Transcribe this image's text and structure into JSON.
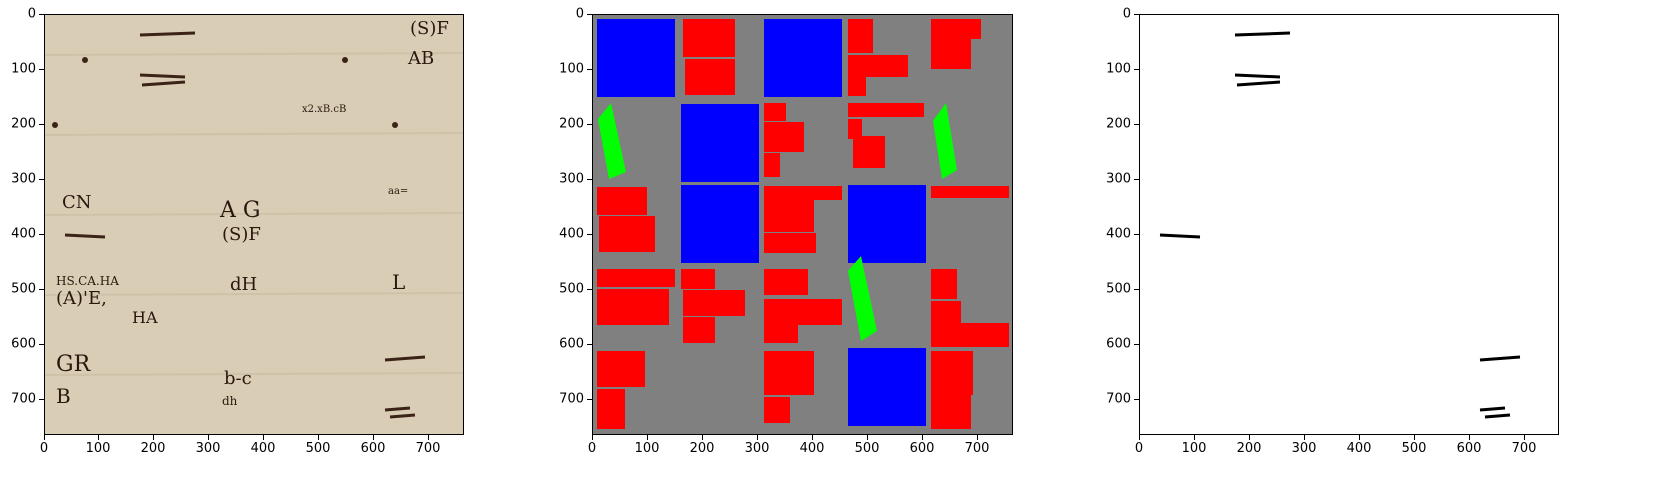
{
  "figure": {
    "panels": [
      {
        "id": "manuscript",
        "kind": "image"
      },
      {
        "id": "segmentation",
        "kind": "mask",
        "colors": {
          "background": "#808080",
          "red": "#ff0000",
          "blue": "#0000ff",
          "green": "#00ff00"
        }
      },
      {
        "id": "binarized",
        "kind": "image"
      }
    ],
    "x_ticks": [
      "0",
      "100",
      "200",
      "300",
      "400",
      "500",
      "600",
      "700"
    ],
    "y_ticks": [
      "0",
      "100",
      "200",
      "300",
      "400",
      "500",
      "600",
      "700"
    ],
    "ocr_snippets": [
      "(S)F",
      "AB",
      "x2.xB.cB",
      "CN",
      "A G",
      "(S)F",
      "aa=",
      "HS.CA.HA",
      "(A)'E,",
      "HA",
      "dH",
      "L",
      "GR",
      "B",
      "b-c",
      "dh"
    ]
  }
}
